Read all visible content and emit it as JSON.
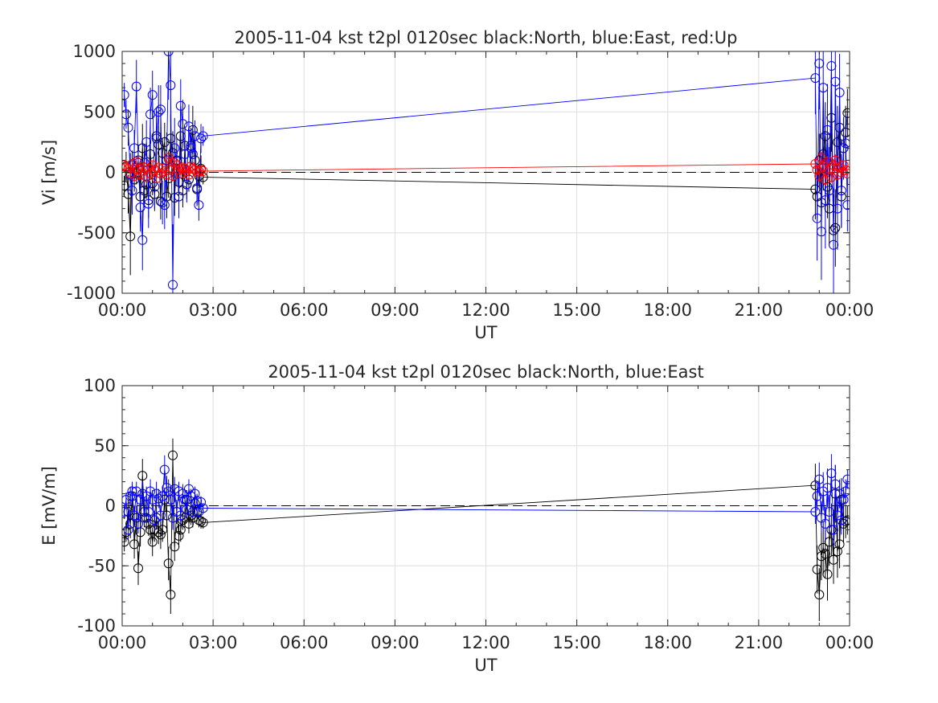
{
  "chart_data": [
    {
      "type": "line",
      "title": "2005-11-04 kst t2pl 0120sec black:North, blue:East, red:Up",
      "xlabel": "UT",
      "ylabel": "Vi [m/s]",
      "xlim": [
        0,
        24
      ],
      "ylim": [
        -1000,
        1000
      ],
      "x_ticks": [
        0,
        3,
        6,
        9,
        12,
        15,
        18,
        21,
        24
      ],
      "x_tick_labels": [
        "00:00",
        "03:00",
        "06:00",
        "09:00",
        "12:00",
        "15:00",
        "18:00",
        "21:00",
        "00:00"
      ],
      "y_ticks": [
        -1000,
        -500,
        0,
        500,
        1000
      ],
      "y_tick_labels": [
        "-1000",
        "-500",
        "0",
        "500",
        "1000"
      ],
      "grid": true,
      "zero_line": "dashed",
      "colors": {
        "North": "#000000",
        "East": "#0000ff",
        "Up": "#ff0000"
      },
      "series": [
        {
          "color": "black",
          "x": [
            0.07,
            0.13,
            0.2,
            0.27,
            0.33,
            0.4,
            0.47,
            0.53,
            0.6,
            0.67,
            0.73,
            0.8,
            0.87,
            0.93,
            1.0,
            1.07,
            1.13,
            1.2,
            1.27,
            1.33,
            1.4,
            1.47,
            1.53,
            1.6,
            1.67,
            1.73,
            1.8,
            1.87,
            1.93,
            2.0,
            2.07,
            2.13,
            2.2,
            2.27,
            2.33,
            2.4,
            2.47,
            2.53,
            2.6,
            2.67,
            22.87,
            22.93,
            23.0,
            23.07,
            23.13,
            23.2,
            23.27,
            23.33,
            23.4,
            23.47,
            23.53,
            23.6,
            23.67,
            23.73,
            23.8,
            23.87,
            23.93
          ],
          "values": [
            -110,
            50,
            -180,
            -530,
            60,
            -60,
            -10,
            100,
            -200,
            200,
            -150,
            -100,
            -230,
            150,
            -90,
            -180,
            300,
            230,
            -240,
            160,
            250,
            -200,
            -50,
            280,
            160,
            -210,
            100,
            -80,
            300,
            -150,
            220,
            -100,
            -60,
            220,
            350,
            100,
            -140,
            -30,
            30,
            -40,
            -140,
            -200,
            100,
            -250,
            150,
            300,
            -120,
            -300,
            450,
            -480,
            -460,
            250,
            370,
            -200,
            200,
            330,
            490
          ],
          "errors": [
            80,
            120,
            160,
            320,
            120,
            100,
            90,
            110,
            180,
            200,
            140,
            120,
            150,
            180,
            100,
            140,
            200,
            150,
            150,
            120,
            160,
            180,
            160,
            200,
            180,
            150,
            130,
            120,
            200,
            140,
            160,
            120,
            100,
            150,
            200,
            120,
            130,
            100,
            110,
            60,
            250,
            200,
            220,
            250,
            300,
            280,
            260,
            300,
            280,
            300,
            320,
            300,
            280,
            260,
            240,
            220,
            200
          ]
        },
        {
          "color": "blue",
          "x": [
            0.07,
            0.13,
            0.2,
            0.27,
            0.33,
            0.4,
            0.47,
            0.53,
            0.6,
            0.67,
            0.73,
            0.8,
            0.87,
            0.93,
            1.0,
            1.07,
            1.13,
            1.2,
            1.27,
            1.33,
            1.4,
            1.47,
            1.53,
            1.6,
            1.67,
            1.73,
            1.8,
            1.87,
            1.93,
            2.0,
            2.07,
            2.13,
            2.2,
            2.27,
            2.33,
            2.4,
            2.47,
            2.53,
            2.6,
            2.67,
            22.87,
            22.93,
            23.0,
            23.07,
            23.13,
            23.2,
            23.27,
            23.33,
            23.4,
            23.47,
            23.53,
            23.6,
            23.67,
            23.73,
            23.8,
            23.87,
            23.93
          ],
          "values": [
            640,
            480,
            370,
            -20,
            -150,
            200,
            710,
            80,
            -290,
            -560,
            80,
            250,
            -260,
            480,
            640,
            -120,
            280,
            500,
            520,
            -250,
            -270,
            100,
            1000,
            720,
            -930,
            200,
            90,
            -200,
            550,
            400,
            150,
            -100,
            380,
            200,
            150,
            300,
            -130,
            -270,
            280,
            300,
            780,
            -380,
            900,
            -490,
            700,
            -230,
            350,
            -150,
            880,
            -600,
            750,
            -300,
            660,
            -150,
            200,
            240,
            -270
          ],
          "errors": [
            100,
            120,
            150,
            180,
            200,
            150,
            220,
            150,
            200,
            250,
            150,
            180,
            200,
            220,
            200,
            180,
            230,
            220,
            200,
            180,
            200,
            230,
            400,
            300,
            500,
            250,
            200,
            180,
            220,
            200,
            160,
            150,
            180,
            160,
            150,
            130,
            150,
            130,
            120,
            80,
            300,
            350,
            380,
            400,
            420,
            400,
            380,
            360,
            380,
            400,
            360,
            340,
            320,
            300,
            260,
            240,
            220
          ]
        },
        {
          "color": "red",
          "x": [
            0.07,
            0.13,
            0.2,
            0.27,
            0.33,
            0.4,
            0.47,
            0.53,
            0.6,
            0.67,
            0.73,
            0.8,
            0.87,
            0.93,
            1.0,
            1.07,
            1.13,
            1.2,
            1.27,
            1.33,
            1.4,
            1.47,
            1.53,
            1.6,
            1.67,
            1.73,
            1.8,
            1.87,
            1.93,
            2.0,
            2.07,
            2.13,
            2.2,
            2.27,
            2.33,
            2.4,
            2.47,
            2.53,
            2.6,
            2.67,
            22.87,
            22.93,
            23.0,
            23.07,
            23.13,
            23.2,
            23.27,
            23.33,
            23.4,
            23.47,
            23.53,
            23.6,
            23.67,
            23.73,
            23.8,
            23.87,
            23.93
          ],
          "values": [
            60,
            40,
            30,
            -10,
            70,
            -30,
            90,
            20,
            -20,
            50,
            40,
            -40,
            30,
            -10,
            60,
            20,
            -50,
            40,
            -10,
            30,
            10,
            -20,
            120,
            90,
            -30,
            80,
            60,
            20,
            -10,
            40,
            30,
            10,
            -20,
            50,
            30,
            20,
            0,
            10,
            20,
            10,
            70,
            20,
            -30,
            120,
            50,
            -60,
            90,
            30,
            -40,
            60,
            100,
            -20,
            40,
            0,
            60,
            20,
            -10
          ],
          "errors": [
            30,
            25,
            30,
            30,
            30,
            30,
            35,
            30,
            30,
            30,
            30,
            30,
            30,
            30,
            30,
            30,
            30,
            30,
            30,
            30,
            30,
            30,
            40,
            40,
            40,
            35,
            30,
            30,
            30,
            30,
            30,
            25,
            25,
            30,
            25,
            25,
            25,
            25,
            25,
            20,
            40,
            40,
            45,
            50,
            50,
            50,
            45,
            45,
            45,
            50,
            50,
            45,
            45,
            40,
            40,
            35,
            30
          ]
        }
      ]
    },
    {
      "type": "line",
      "title": "2005-11-04 kst t2pl 0120sec black:North, blue:East",
      "xlabel": "UT",
      "ylabel": "E [mV/m]",
      "xlim": [
        0,
        24
      ],
      "ylim": [
        -100,
        100
      ],
      "x_ticks": [
        0,
        3,
        6,
        9,
        12,
        15,
        18,
        21,
        24
      ],
      "x_tick_labels": [
        "00:00",
        "03:00",
        "06:00",
        "09:00",
        "12:00",
        "15:00",
        "18:00",
        "21:00",
        "00:00"
      ],
      "y_ticks": [
        -100,
        -50,
        0,
        50,
        100
      ],
      "y_tick_labels": [
        "-100",
        "-50",
        "0",
        "50",
        "100"
      ],
      "grid": true,
      "zero_line": "dashed",
      "colors": {
        "North": "#000000",
        "East": "#0000ff"
      },
      "series": [
        {
          "color": "black",
          "x": [
            0.07,
            0.13,
            0.2,
            0.27,
            0.33,
            0.4,
            0.47,
            0.53,
            0.6,
            0.67,
            0.73,
            0.8,
            0.87,
            0.93,
            1.0,
            1.07,
            1.13,
            1.2,
            1.27,
            1.33,
            1.4,
            1.47,
            1.53,
            1.6,
            1.67,
            1.73,
            1.8,
            1.87,
            1.93,
            2.0,
            2.07,
            2.13,
            2.2,
            2.27,
            2.33,
            2.4,
            2.47,
            2.53,
            2.6,
            2.67,
            22.87,
            22.93,
            23.0,
            23.07,
            23.13,
            23.2,
            23.27,
            23.33,
            23.4,
            23.47,
            23.53,
            23.6,
            23.67,
            23.73,
            23.8,
            23.87,
            23.93
          ],
          "values": [
            -30,
            -22,
            -5,
            -15,
            8,
            -32,
            -10,
            -52,
            -22,
            25,
            -5,
            -10,
            -15,
            -20,
            -30,
            -20,
            -10,
            -22,
            -24,
            -20,
            5,
            -8,
            -48,
            -74,
            42,
            -34,
            -5,
            -25,
            -20,
            -12,
            -10,
            5,
            -15,
            -8,
            -10,
            2,
            -5,
            -12,
            -13,
            -14,
            17,
            -53,
            -74,
            -42,
            -35,
            -40,
            -57,
            -30,
            -20,
            -45,
            10,
            -38,
            -32,
            5,
            -15,
            -13,
            -12
          ],
          "errors": [
            8,
            8,
            10,
            12,
            10,
            12,
            10,
            14,
            12,
            14,
            10,
            10,
            10,
            12,
            12,
            10,
            10,
            10,
            12,
            10,
            10,
            12,
            14,
            16,
            14,
            12,
            10,
            10,
            10,
            8,
            8,
            8,
            8,
            8,
            8,
            8,
            8,
            6,
            6,
            5,
            18,
            20,
            22,
            20,
            22,
            20,
            22,
            20,
            22,
            20,
            24,
            22,
            20,
            18,
            16,
            14,
            12
          ]
        },
        {
          "color": "blue",
          "x": [
            0.07,
            0.13,
            0.2,
            0.27,
            0.33,
            0.4,
            0.47,
            0.53,
            0.6,
            0.67,
            0.73,
            0.8,
            0.87,
            0.93,
            1.0,
            1.07,
            1.13,
            1.2,
            1.27,
            1.33,
            1.4,
            1.47,
            1.53,
            1.6,
            1.67,
            1.73,
            1.8,
            1.87,
            1.93,
            2.0,
            2.07,
            2.13,
            2.2,
            2.27,
            2.33,
            2.4,
            2.47,
            2.53,
            2.6,
            2.67,
            22.87,
            22.93,
            23.0,
            23.07,
            23.13,
            23.2,
            23.27,
            23.33,
            23.4,
            23.47,
            23.53,
            23.6,
            23.67,
            23.73,
            23.8,
            23.87,
            23.93
          ],
          "values": [
            -5,
            5,
            -20,
            8,
            12,
            -8,
            12,
            -15,
            5,
            10,
            -10,
            8,
            -5,
            12,
            5,
            -12,
            10,
            6,
            -8,
            8,
            30,
            15,
            12,
            5,
            -10,
            14,
            -5,
            12,
            -8,
            10,
            5,
            -3,
            14,
            8,
            -5,
            10,
            4,
            -5,
            3,
            -2,
            -5,
            8,
            22,
            -10,
            12,
            -15,
            15,
            -5,
            27,
            -20,
            18,
            -8,
            10,
            -12,
            5,
            12,
            22
          ],
          "errors": [
            6,
            6,
            8,
            8,
            8,
            8,
            8,
            8,
            8,
            10,
            8,
            8,
            8,
            10,
            8,
            8,
            10,
            8,
            8,
            8,
            12,
            10,
            10,
            10,
            10,
            10,
            8,
            8,
            8,
            8,
            8,
            6,
            8,
            6,
            6,
            6,
            6,
            5,
            5,
            4,
            10,
            12,
            14,
            14,
            16,
            14,
            16,
            14,
            16,
            14,
            16,
            14,
            12,
            12,
            10,
            10,
            8
          ]
        }
      ]
    }
  ]
}
